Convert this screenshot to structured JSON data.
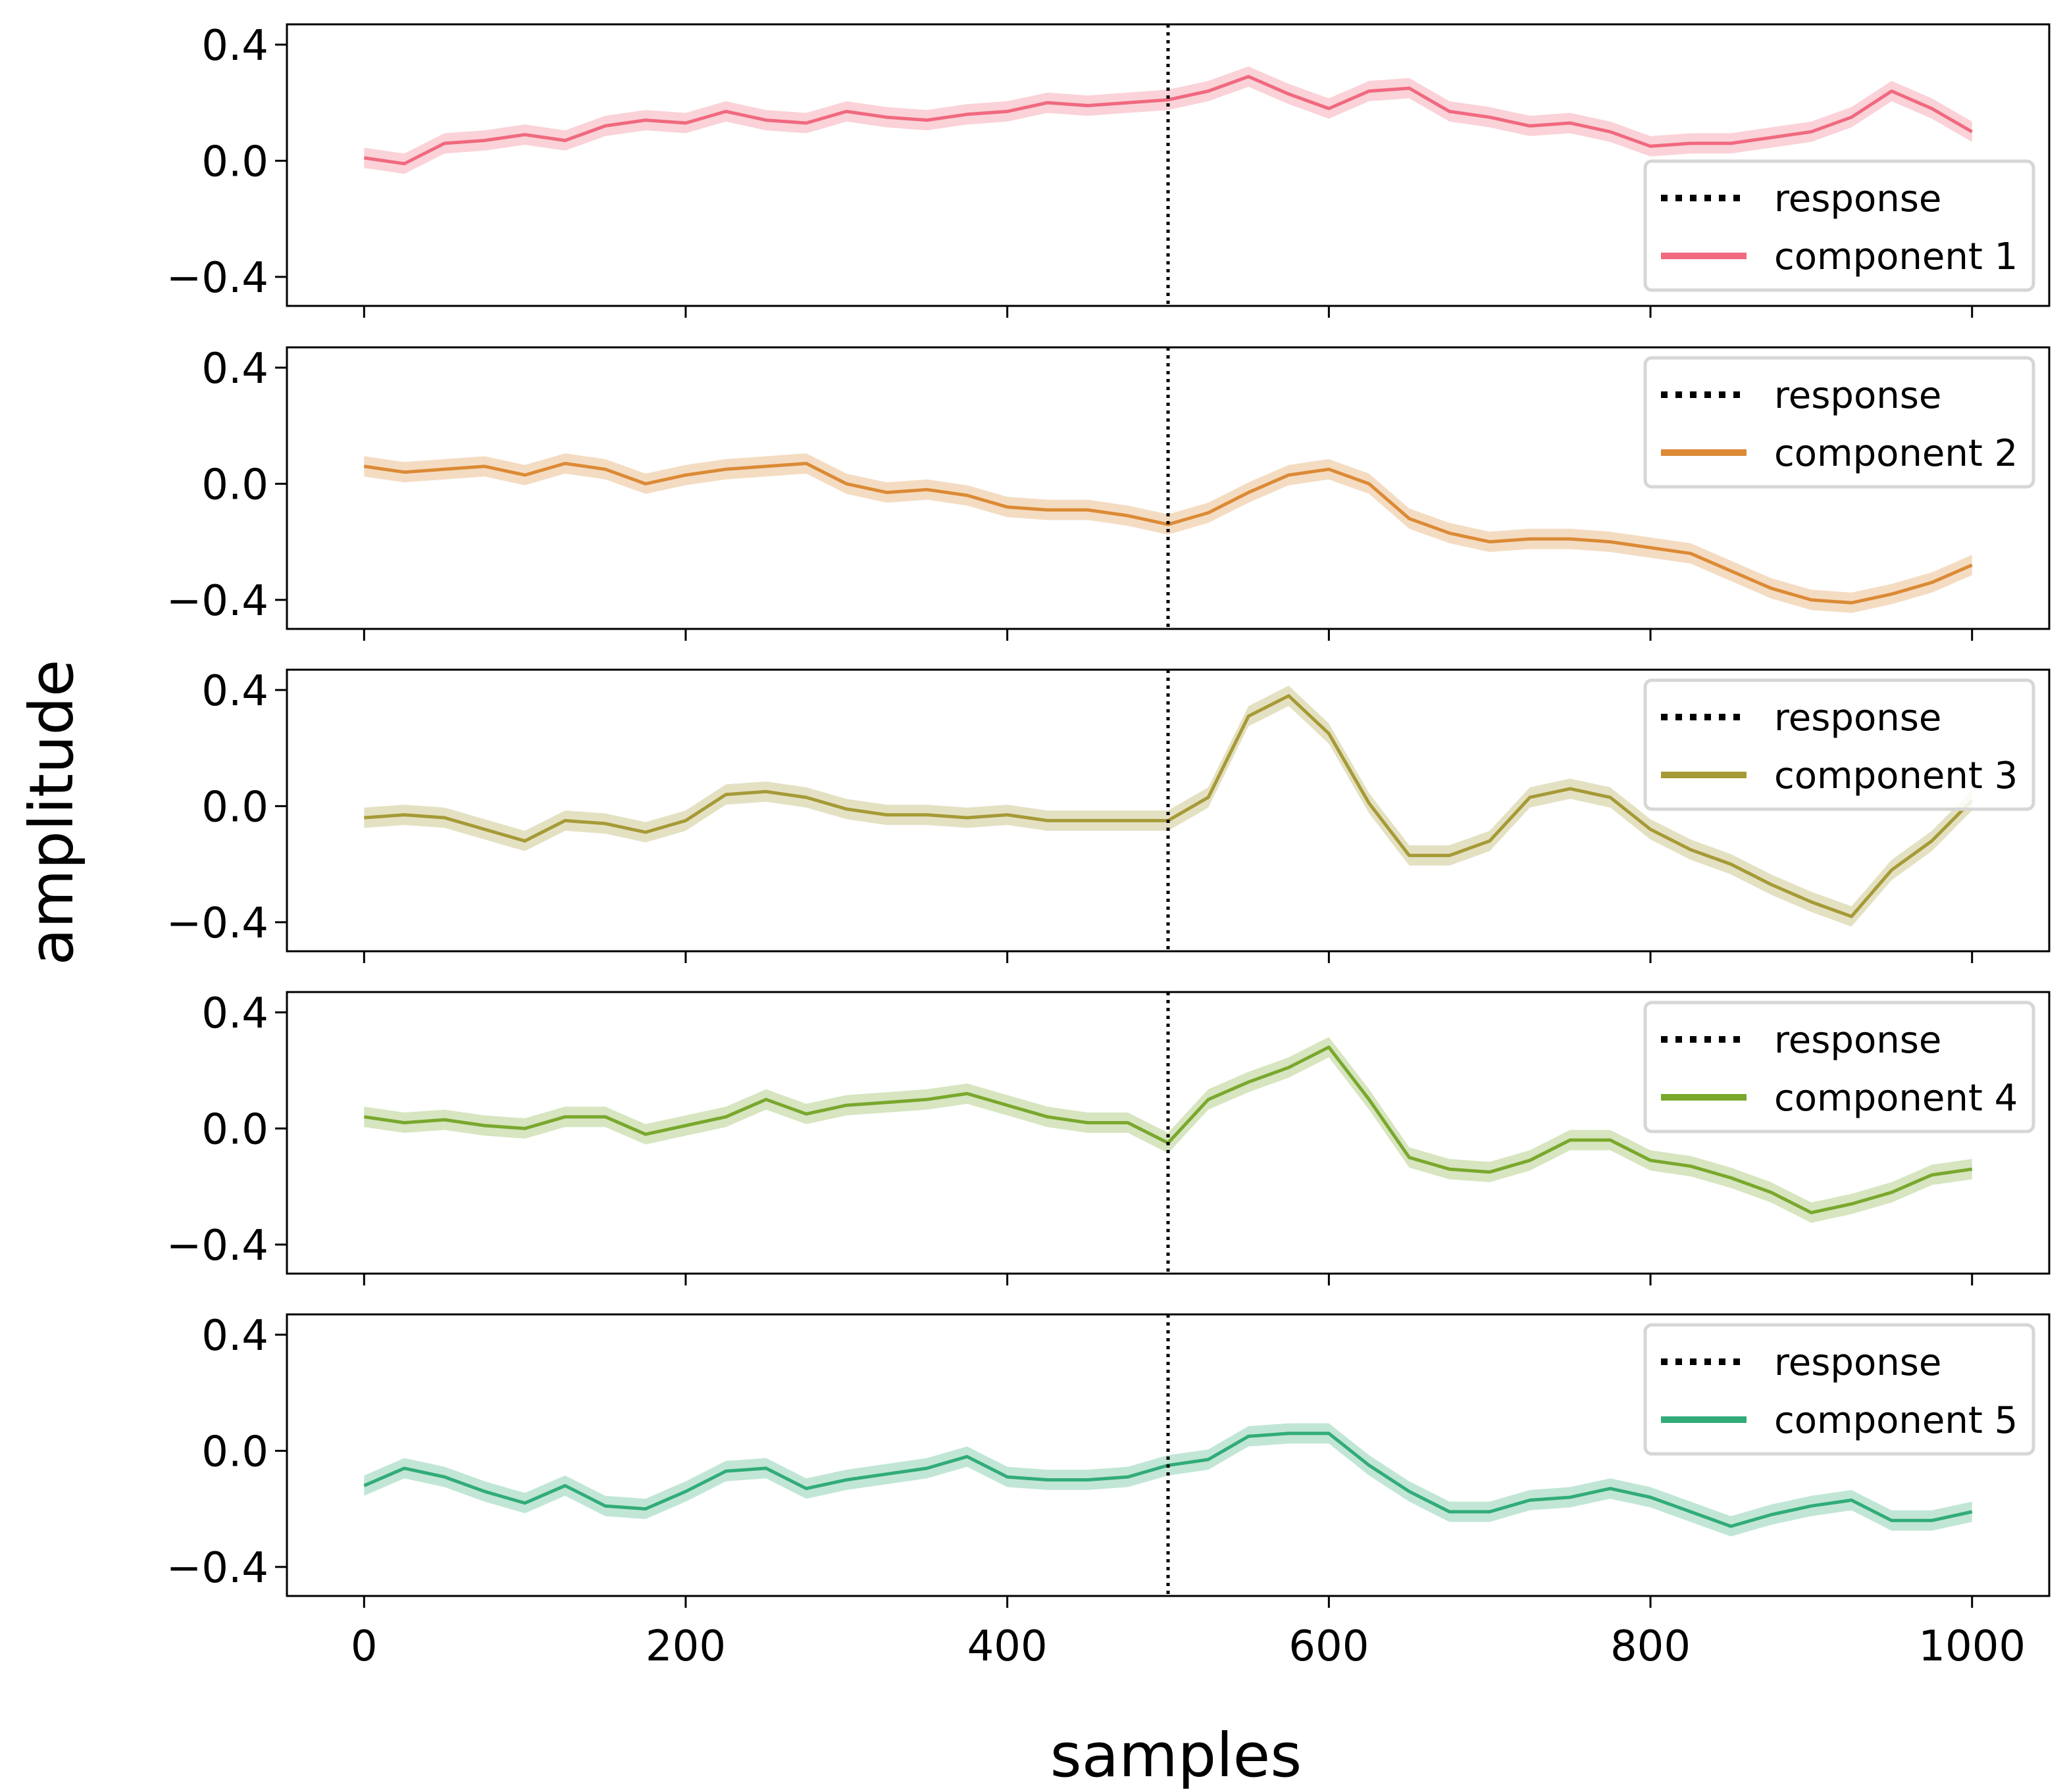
{
  "chart_data": {
    "type": "line",
    "xlabel": "samples",
    "ylabel": "amplitude",
    "xlim": [
      -48,
      1048
    ],
    "ylim": [
      -0.5,
      0.47
    ],
    "xticks": [
      0,
      200,
      400,
      600,
      800,
      1000
    ],
    "xtick_labels": [
      "0",
      "200",
      "400",
      "600",
      "800",
      "1000"
    ],
    "yticks": [
      0.4,
      0.0,
      -0.4
    ],
    "ytick_labels": [
      "0.4",
      "0.0",
      "−0.4"
    ],
    "response_marker": {
      "name": "response",
      "x": 500,
      "style": "dotted",
      "color": "#000000"
    },
    "band_halfwidth": 0.035,
    "panels": [
      {
        "series_name": "component 1",
        "color": "#f0697f",
        "legend_position": "lower-right",
        "x": [
          0,
          25,
          50,
          75,
          100,
          125,
          150,
          175,
          200,
          225,
          250,
          275,
          300,
          325,
          350,
          375,
          400,
          425,
          450,
          475,
          500,
          525,
          550,
          575,
          600,
          625,
          650,
          675,
          700,
          725,
          750,
          775,
          800,
          825,
          850,
          875,
          900,
          925,
          950,
          975,
          1000
        ],
        "y": [
          0.01,
          -0.01,
          0.06,
          0.07,
          0.09,
          0.07,
          0.12,
          0.14,
          0.13,
          0.17,
          0.14,
          0.13,
          0.17,
          0.15,
          0.14,
          0.16,
          0.17,
          0.2,
          0.19,
          0.2,
          0.21,
          0.24,
          0.29,
          0.23,
          0.18,
          0.24,
          0.25,
          0.17,
          0.15,
          0.12,
          0.13,
          0.1,
          0.05,
          0.06,
          0.06,
          0.08,
          0.1,
          0.15,
          0.24,
          0.18,
          0.1
        ]
      },
      {
        "series_name": "component 2",
        "color": "#dc8a36",
        "legend_position": "upper-right",
        "x": [
          0,
          25,
          50,
          75,
          100,
          125,
          150,
          175,
          200,
          225,
          250,
          275,
          300,
          325,
          350,
          375,
          400,
          425,
          450,
          475,
          500,
          525,
          550,
          575,
          600,
          625,
          650,
          675,
          700,
          725,
          750,
          775,
          800,
          825,
          850,
          875,
          900,
          925,
          950,
          975,
          1000
        ],
        "y": [
          0.06,
          0.04,
          0.05,
          0.06,
          0.03,
          0.07,
          0.05,
          0.0,
          0.03,
          0.05,
          0.06,
          0.07,
          0.0,
          -0.03,
          -0.02,
          -0.04,
          -0.08,
          -0.09,
          -0.09,
          -0.11,
          -0.14,
          -0.1,
          -0.03,
          0.03,
          0.05,
          0.0,
          -0.12,
          -0.17,
          -0.2,
          -0.19,
          -0.19,
          -0.2,
          -0.22,
          -0.24,
          -0.3,
          -0.36,
          -0.4,
          -0.41,
          -0.38,
          -0.34,
          -0.28
        ]
      },
      {
        "series_name": "component 3",
        "color": "#a69a37",
        "legend_position": "upper-right",
        "x": [
          0,
          25,
          50,
          75,
          100,
          125,
          150,
          175,
          200,
          225,
          250,
          275,
          300,
          325,
          350,
          375,
          400,
          425,
          450,
          475,
          500,
          525,
          550,
          575,
          600,
          625,
          650,
          675,
          700,
          725,
          750,
          775,
          800,
          825,
          850,
          875,
          900,
          925,
          950,
          975,
          1000
        ],
        "y": [
          -0.04,
          -0.03,
          -0.04,
          -0.08,
          -0.12,
          -0.05,
          -0.06,
          -0.09,
          -0.05,
          0.04,
          0.05,
          0.03,
          -0.01,
          -0.03,
          -0.03,
          -0.04,
          -0.03,
          -0.05,
          -0.05,
          -0.05,
          -0.05,
          0.03,
          0.31,
          0.38,
          0.25,
          0.01,
          -0.17,
          -0.17,
          -0.12,
          0.03,
          0.06,
          0.03,
          -0.08,
          -0.15,
          -0.2,
          -0.27,
          -0.33,
          -0.38,
          -0.22,
          -0.12,
          0.02
        ]
      },
      {
        "series_name": "component 4",
        "color": "#79a82d",
        "legend_position": "upper-right",
        "x": [
          0,
          25,
          50,
          75,
          100,
          125,
          150,
          175,
          200,
          225,
          250,
          275,
          300,
          325,
          350,
          375,
          400,
          425,
          450,
          475,
          500,
          525,
          550,
          575,
          600,
          625,
          650,
          675,
          700,
          725,
          750,
          775,
          800,
          825,
          850,
          875,
          900,
          925,
          950,
          975,
          1000
        ],
        "y": [
          0.04,
          0.02,
          0.03,
          0.01,
          0.0,
          0.04,
          0.04,
          -0.02,
          0.01,
          0.04,
          0.1,
          0.05,
          0.08,
          0.09,
          0.1,
          0.12,
          0.08,
          0.04,
          0.02,
          0.02,
          -0.05,
          0.1,
          0.16,
          0.21,
          0.28,
          0.1,
          -0.1,
          -0.14,
          -0.15,
          -0.11,
          -0.04,
          -0.04,
          -0.11,
          -0.13,
          -0.17,
          -0.22,
          -0.29,
          -0.26,
          -0.22,
          -0.16,
          -0.14
        ]
      },
      {
        "series_name": "component 5",
        "color": "#31ac78",
        "legend_position": "upper-right",
        "x": [
          0,
          25,
          50,
          75,
          100,
          125,
          150,
          175,
          200,
          225,
          250,
          275,
          300,
          325,
          350,
          375,
          400,
          425,
          450,
          475,
          500,
          525,
          550,
          575,
          600,
          625,
          650,
          675,
          700,
          725,
          750,
          775,
          800,
          825,
          850,
          875,
          900,
          925,
          950,
          975,
          1000
        ],
        "y": [
          -0.12,
          -0.06,
          -0.09,
          -0.14,
          -0.18,
          -0.12,
          -0.19,
          -0.2,
          -0.14,
          -0.07,
          -0.06,
          -0.13,
          -0.1,
          -0.08,
          -0.06,
          -0.02,
          -0.09,
          -0.1,
          -0.1,
          -0.09,
          -0.05,
          -0.03,
          0.05,
          0.06,
          0.06,
          -0.05,
          -0.14,
          -0.21,
          -0.21,
          -0.17,
          -0.16,
          -0.13,
          -0.16,
          -0.21,
          -0.26,
          -0.22,
          -0.19,
          -0.17,
          -0.24,
          -0.24,
          -0.21
        ]
      }
    ]
  }
}
